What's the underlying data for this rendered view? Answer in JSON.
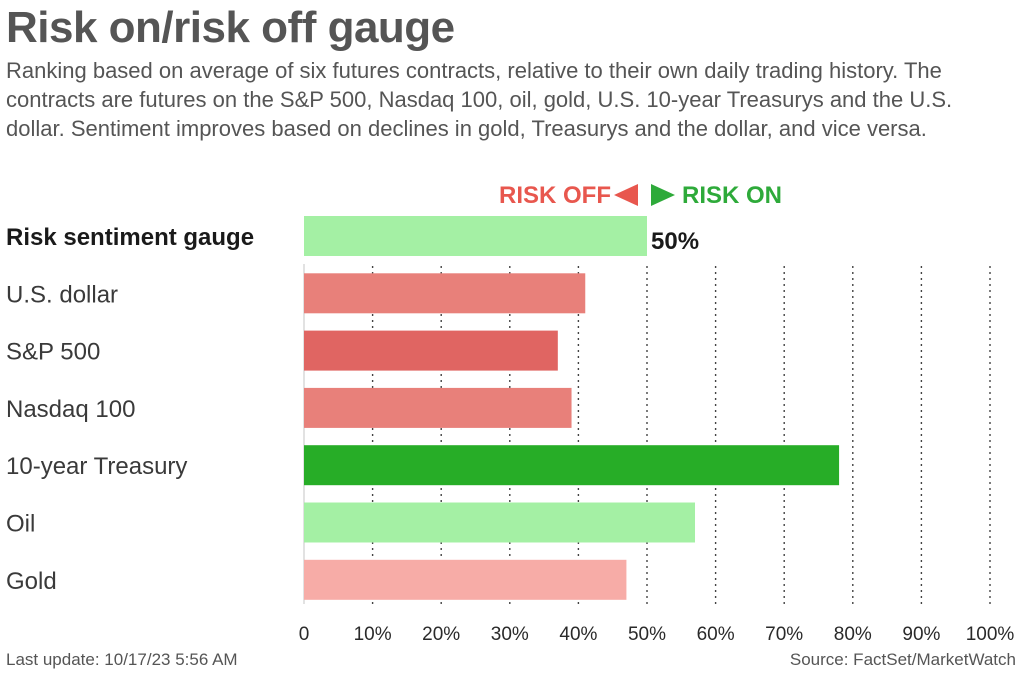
{
  "title": "Risk on/risk off gauge",
  "subtitle": "Ranking based on average of six futures contracts, relative to their own daily trading history. The contracts are futures on the S&P 500, Nasdaq 100, oil, gold, U.S. 10-year Treasurys and the U.S. dollar. Sentiment improves based on declines in gold, Treasurys and the dollar, and vice versa.",
  "footer": {
    "last_update": "Last update: 10/17/23 5:56 AM",
    "source": "Source: FactSet/MarketWatch"
  },
  "colors": {
    "risk_off": "#e8574e",
    "risk_on": "#2eaa3a"
  },
  "chart_data": {
    "type": "bar",
    "orientation": "horizontal",
    "direction_labels": {
      "risk_off": "RISK OFF",
      "risk_on": "RISK ON"
    },
    "categories": [
      "Risk sentiment gauge",
      "U.S. dollar",
      "S&P 500",
      "Nasdaq 100",
      "10-year Treasury",
      "Oil",
      "Gold"
    ],
    "values": [
      50,
      41,
      37,
      39,
      78,
      57,
      47
    ],
    "bar_colors": [
      "#a4f0a4",
      "#e8807a",
      "#e06562",
      "#e8807a",
      "#27ad27",
      "#a4f0a4",
      "#f7aca7"
    ],
    "value_labels": [
      "50%",
      "",
      "",
      "",
      "",
      "",
      ""
    ],
    "xlim": [
      0,
      100
    ],
    "xticks": [
      0,
      10,
      20,
      30,
      40,
      50,
      60,
      70,
      80,
      90,
      100
    ],
    "xtick_labels": [
      "0",
      "10%",
      "20%",
      "30%",
      "40%",
      "50%",
      "60%",
      "70%",
      "80%",
      "90%",
      "100%"
    ],
    "grid": "vertical dotted",
    "xlabel": "",
    "ylabel": ""
  }
}
